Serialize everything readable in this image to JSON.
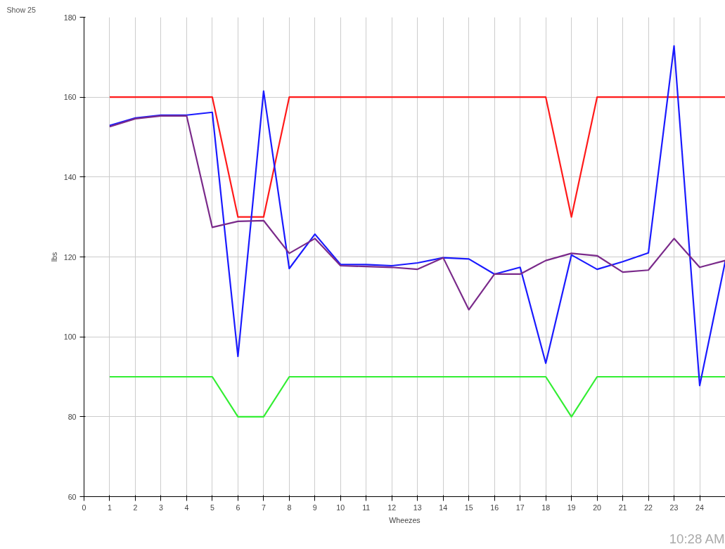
{
  "chart_data": {
    "type": "line",
    "xlabel": "Wheezes",
    "ylabel": "lbs",
    "x": [
      1,
      2,
      3,
      4,
      5,
      6,
      7,
      8,
      9,
      10,
      11,
      12,
      13,
      14,
      15,
      16,
      17,
      18,
      19,
      20,
      21,
      22,
      23,
      24,
      25
    ],
    "series": [
      {
        "color": "#ff1a1a",
        "values": [
          160,
          160,
          160,
          160,
          160,
          130,
          130,
          160,
          160,
          160,
          160,
          160,
          160,
          160,
          160,
          160,
          160,
          160,
          130,
          160,
          160,
          160,
          160,
          160,
          160
        ]
      },
      {
        "color": "#33ee33",
        "values": [
          90,
          90,
          90,
          90,
          90,
          80,
          80,
          90,
          90,
          90,
          90,
          90,
          90,
          90,
          90,
          90,
          90,
          90,
          80,
          90,
          90,
          90,
          90,
          90,
          90
        ]
      },
      {
        "color": "#1a1aff",
        "values": [
          152.9,
          154.8,
          155.5,
          155.5,
          156.2,
          95.1,
          161.5,
          117.1,
          125.7,
          118.1,
          118.1,
          117.8,
          118.5,
          119.8,
          119.5,
          115.7,
          117.4,
          93.4,
          120.5,
          116.9,
          118.8,
          121,
          172.8,
          87.8,
          119
        ]
      },
      {
        "color": "#7a2a8a",
        "values": [
          152.6,
          154.6,
          155.3,
          155.3,
          127.4,
          128.9,
          129.1,
          120.9,
          124.6,
          117.8,
          117.6,
          117.4,
          116.9,
          119.8,
          106.8,
          115.7,
          115.7,
          119.1,
          120.9,
          120.3,
          116.2,
          116.7,
          124.6,
          117.4,
          119.1
        ]
      }
    ],
    "xlim": [
      0,
      25
    ],
    "xticks": [
      0,
      1,
      2,
      3,
      4,
      5,
      6,
      7,
      8,
      9,
      10,
      11,
      12,
      13,
      14,
      15,
      16,
      17,
      18,
      19,
      20,
      21,
      22,
      23,
      24
    ],
    "ylim": [
      60,
      180
    ],
    "yticks": [
      60,
      80,
      100,
      120,
      140,
      160,
      180
    ],
    "grid": true,
    "marker": "none",
    "line_style": "solid",
    "annotations": [
      "Show 25",
      "10:28 AM"
    ]
  }
}
